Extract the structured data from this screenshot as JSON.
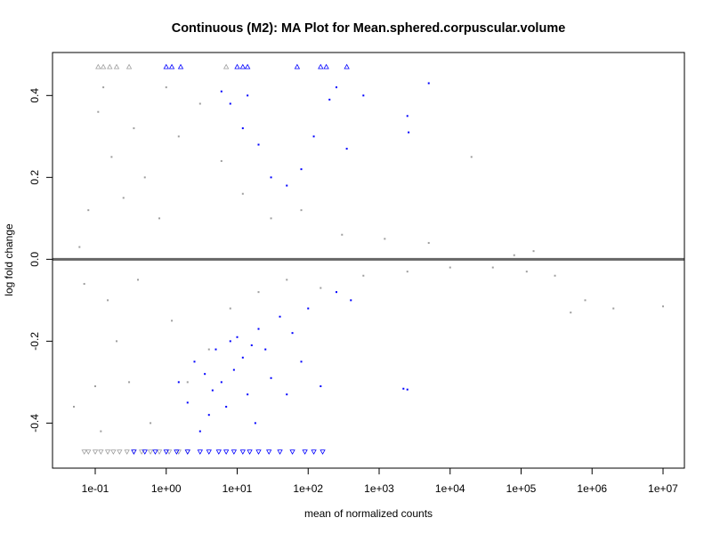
{
  "chart_data": {
    "type": "scatter",
    "title": "Continuous (M2): MA Plot for Mean.sphered.corpuscular.volume",
    "xlabel": "mean of normalized counts",
    "ylabel": "log fold change",
    "x_scale": "log10",
    "xlim": [
      0.025,
      20000000
    ],
    "ylim": [
      -0.51,
      0.505
    ],
    "x_ticks": [
      0.1,
      1,
      10,
      100,
      1000,
      10000,
      100000,
      1000000,
      10000000
    ],
    "x_tick_labels": [
      "1e-01",
      "1e+00",
      "1e+01",
      "1e+02",
      "1e+03",
      "1e+04",
      "1e+05",
      "1e+06",
      "1e+07"
    ],
    "y_ticks": [
      -0.4,
      -0.2,
      0.0,
      0.2,
      0.4
    ],
    "y_tick_labels": [
      "-0.4",
      "-0.2",
      "0.0",
      "0.2",
      "0.4"
    ],
    "reference_line": {
      "y": 0,
      "color": "#666666"
    },
    "out_of_range_marker": {
      "shape": "triangle",
      "y_top": 0.47,
      "y_bottom": -0.47
    },
    "colors": {
      "not_significant": "#9e9e9e",
      "significant": "#0000ff",
      "highlight": "#ffaa00"
    },
    "series": [
      {
        "name": "not significant",
        "color": "#9e9e9e",
        "points": [
          [
            0.05,
            -0.36
          ],
          [
            0.06,
            0.03
          ],
          [
            0.07,
            -0.06
          ],
          [
            0.08,
            0.12
          ],
          [
            0.1,
            -0.31
          ],
          [
            0.11,
            0.36
          ],
          [
            0.12,
            -0.42
          ],
          [
            0.13,
            0.42
          ],
          [
            0.15,
            -0.1
          ],
          [
            0.17,
            0.25
          ],
          [
            0.2,
            -0.2
          ],
          [
            0.25,
            0.15
          ],
          [
            0.3,
            -0.3
          ],
          [
            0.35,
            0.32
          ],
          [
            0.4,
            -0.05
          ],
          [
            0.5,
            0.2
          ],
          [
            0.6,
            -0.4
          ],
          [
            0.8,
            0.1
          ],
          [
            1.0,
            0.42
          ],
          [
            1.2,
            -0.15
          ],
          [
            1.5,
            0.3
          ],
          [
            2.0,
            -0.3
          ],
          [
            3.0,
            0.38
          ],
          [
            4.0,
            -0.22
          ],
          [
            6.0,
            0.24
          ],
          [
            8.0,
            -0.12
          ],
          [
            12.0,
            0.16
          ],
          [
            20.0,
            -0.08
          ],
          [
            30.0,
            0.1
          ],
          [
            50.0,
            -0.05
          ],
          [
            80.0,
            0.12
          ],
          [
            150.0,
            -0.07
          ],
          [
            300.0,
            0.06
          ],
          [
            600.0,
            -0.04
          ],
          [
            1200.0,
            0.05
          ],
          [
            2500.0,
            -0.03
          ],
          [
            5000.0,
            0.04
          ],
          [
            10000.0,
            -0.02
          ],
          [
            20000.0,
            0.25
          ],
          [
            40000.0,
            -0.02
          ],
          [
            80000.0,
            0.01
          ],
          [
            120000.0,
            -0.03
          ],
          [
            150000.0,
            0.02
          ],
          [
            300000.0,
            -0.04
          ],
          [
            500000.0,
            -0.13
          ],
          [
            800000.0,
            -0.1
          ],
          [
            2000000.0,
            -0.12
          ],
          [
            10000000.0,
            -0.115
          ]
        ],
        "clipped": [
          {
            "x": 0.11,
            "y": 0.47
          },
          {
            "x": 0.13,
            "y": 0.47
          },
          {
            "x": 0.16,
            "y": 0.47
          },
          {
            "x": 0.2,
            "y": 0.47
          },
          {
            "x": 0.3,
            "y": 0.47
          },
          {
            "x": 7.0,
            "y": 0.47
          },
          {
            "x": 0.07,
            "y": -0.47
          },
          {
            "x": 0.08,
            "y": -0.47
          },
          {
            "x": 0.1,
            "y": -0.47
          },
          {
            "x": 0.12,
            "y": -0.47
          },
          {
            "x": 0.15,
            "y": -0.47
          },
          {
            "x": 0.18,
            "y": -0.47
          },
          {
            "x": 0.22,
            "y": -0.47
          },
          {
            "x": 0.28,
            "y": -0.47
          },
          {
            "x": 0.35,
            "y": -0.47
          },
          {
            "x": 0.45,
            "y": -0.47
          },
          {
            "x": 0.6,
            "y": -0.47
          },
          {
            "x": 0.8,
            "y": -0.47
          },
          {
            "x": 1.1,
            "y": -0.47
          },
          {
            "x": 1.5,
            "y": -0.47
          },
          {
            "x": 2.0,
            "y": -0.47
          }
        ]
      },
      {
        "name": "significant",
        "color": "#0000ff",
        "points": [
          [
            6.0,
            0.41
          ],
          [
            8.0,
            0.38
          ],
          [
            12.0,
            0.32
          ],
          [
            14.0,
            0.4
          ],
          [
            20.0,
            0.28
          ],
          [
            30.0,
            0.2
          ],
          [
            50.0,
            0.18
          ],
          [
            80.0,
            0.22
          ],
          [
            120.0,
            0.3
          ],
          [
            200.0,
            0.39
          ],
          [
            250.0,
            0.42
          ],
          [
            350.0,
            0.27
          ],
          [
            600.0,
            0.4
          ],
          [
            2500.0,
            0.35
          ],
          [
            2600.0,
            0.31
          ],
          [
            5000.0,
            0.43
          ],
          [
            1.5,
            -0.3
          ],
          [
            2.0,
            -0.35
          ],
          [
            2.5,
            -0.25
          ],
          [
            3.0,
            -0.42
          ],
          [
            3.5,
            -0.28
          ],
          [
            4.0,
            -0.38
          ],
          [
            4.5,
            -0.32
          ],
          [
            5.0,
            -0.22
          ],
          [
            6.0,
            -0.3
          ],
          [
            7.0,
            -0.36
          ],
          [
            8.0,
            -0.2
          ],
          [
            9.0,
            -0.27
          ],
          [
            10.0,
            -0.19
          ],
          [
            12.0,
            -0.24
          ],
          [
            14.0,
            -0.33
          ],
          [
            16.0,
            -0.21
          ],
          [
            18.0,
            -0.4
          ],
          [
            20.0,
            -0.17
          ],
          [
            25.0,
            -0.22
          ],
          [
            30.0,
            -0.29
          ],
          [
            40.0,
            -0.14
          ],
          [
            50.0,
            -0.33
          ],
          [
            60.0,
            -0.18
          ],
          [
            80.0,
            -0.25
          ],
          [
            100.0,
            -0.12
          ],
          [
            150.0,
            -0.31
          ],
          [
            250.0,
            -0.08
          ],
          [
            400.0,
            -0.1
          ],
          [
            2200.0,
            -0.316
          ],
          [
            2500.0,
            -0.318
          ]
        ],
        "clipped": [
          {
            "x": 1.0,
            "y": 0.47
          },
          {
            "x": 1.2,
            "y": 0.47
          },
          {
            "x": 1.6,
            "y": 0.47
          },
          {
            "x": 10.0,
            "y": 0.47
          },
          {
            "x": 12.0,
            "y": 0.47
          },
          {
            "x": 14.0,
            "y": 0.47
          },
          {
            "x": 70.0,
            "y": 0.47
          },
          {
            "x": 150.0,
            "y": 0.47
          },
          {
            "x": 180.0,
            "y": 0.47
          },
          {
            "x": 350.0,
            "y": 0.47
          },
          {
            "x": 0.35,
            "y": -0.47
          },
          {
            "x": 0.5,
            "y": -0.47
          },
          {
            "x": 0.7,
            "y": -0.47
          },
          {
            "x": 1.0,
            "y": -0.47
          },
          {
            "x": 1.4,
            "y": -0.47
          },
          {
            "x": 2.0,
            "y": -0.47
          },
          {
            "x": 3.0,
            "y": -0.47
          },
          {
            "x": 4.0,
            "y": -0.47
          },
          {
            "x": 5.5,
            "y": -0.47
          },
          {
            "x": 7.0,
            "y": -0.47
          },
          {
            "x": 9.0,
            "y": -0.47
          },
          {
            "x": 12.0,
            "y": -0.47
          },
          {
            "x": 15.0,
            "y": -0.47
          },
          {
            "x": 20.0,
            "y": -0.47
          },
          {
            "x": 28.0,
            "y": -0.47
          },
          {
            "x": 40.0,
            "y": -0.47
          },
          {
            "x": 60.0,
            "y": -0.47
          },
          {
            "x": 90.0,
            "y": -0.47
          },
          {
            "x": 120.0,
            "y": -0.47
          },
          {
            "x": 160.0,
            "y": -0.47
          }
        ]
      }
    ],
    "grid": false,
    "legend": "none"
  }
}
